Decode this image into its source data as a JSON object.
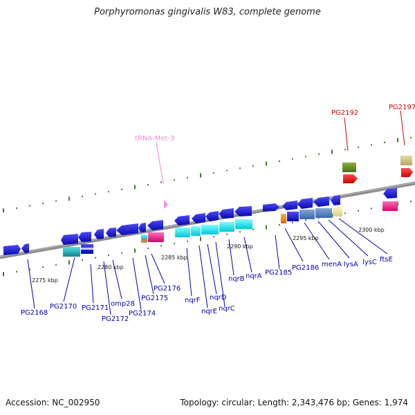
{
  "title": "Porphyromonas gingivalis W83, complete genome",
  "footer": {
    "accession": "Accession: NC_002950",
    "topology": "Topology: circular; Length: 2,343,476 bp; Genes: 1,974"
  },
  "scale_labels": [
    "2275 kbp",
    "2280 kbp",
    "2285 kbp",
    "2290 kbp",
    "2295 kbp",
    "2300 kbp"
  ],
  "gene_labels": [
    "PG2168",
    "PG2170",
    "PG2171",
    "PG2172",
    "omp28",
    "PG2174",
    "PG2175",
    "PG2176",
    "nqrF",
    "nqrE",
    "nqrD",
    "nqrC",
    "nqrB",
    "nqrA",
    "PG2185",
    "PG2186",
    "menA",
    "lysA",
    "lysC",
    "ftsE"
  ],
  "rna_labels": [
    "tRNA-Met-3"
  ],
  "pseudo_labels": [
    "PG2192",
    "PG2197"
  ],
  "colors": {
    "gene_label": "#0000aa",
    "pseudo_label": "#cc0000",
    "rna_label": "#ee88cc",
    "gene_arrow": "#1a1acc",
    "tick": "#3a7a2a",
    "backbone": "#888888"
  }
}
